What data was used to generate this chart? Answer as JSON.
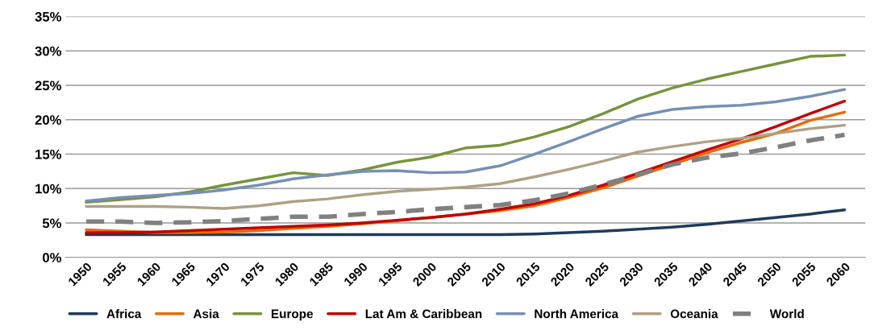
{
  "chart_data": {
    "type": "line",
    "categories": [
      "1950",
      "1955",
      "1960",
      "1965",
      "1970",
      "1975",
      "1980",
      "1985",
      "1990",
      "1995",
      "2000",
      "2005",
      "2010",
      "2015",
      "2020",
      "2025",
      "2030",
      "2035",
      "2040",
      "2045",
      "2050",
      "2055",
      "2060"
    ],
    "series": [
      {
        "name": "Africa",
        "color": "#1f3b5a",
        "values": [
          3.3,
          3.3,
          3.3,
          3.3,
          3.3,
          3.3,
          3.3,
          3.3,
          3.3,
          3.3,
          3.3,
          3.3,
          3.3,
          3.4,
          3.6,
          3.8,
          4.1,
          4.4,
          4.8,
          5.3,
          5.8,
          6.3,
          6.9
        ]
      },
      {
        "name": "Asia",
        "color": "#e36c0a",
        "values": [
          4.0,
          3.8,
          3.6,
          3.6,
          3.7,
          3.9,
          4.2,
          4.5,
          4.9,
          5.3,
          5.8,
          6.3,
          6.8,
          7.5,
          8.7,
          10.1,
          11.8,
          13.5,
          15.2,
          16.7,
          18.0,
          19.9,
          21.1
        ]
      },
      {
        "name": "Europe",
        "color": "#77933c",
        "values": [
          8.0,
          8.4,
          8.8,
          9.5,
          10.5,
          11.4,
          12.3,
          11.9,
          12.7,
          13.8,
          14.6,
          15.9,
          16.3,
          17.5,
          19.0,
          20.9,
          23.0,
          24.6,
          25.9,
          27.0,
          28.1,
          29.2,
          29.4
        ]
      },
      {
        "name": "Lat Am & Caribbean",
        "color": "#c00000",
        "values": [
          3.6,
          3.6,
          3.7,
          3.9,
          4.1,
          4.3,
          4.5,
          4.7,
          5.0,
          5.4,
          5.8,
          6.3,
          7.0,
          7.8,
          9.0,
          10.5,
          12.2,
          13.9,
          15.6,
          17.2,
          19.0,
          20.9,
          22.7
        ]
      },
      {
        "name": "North America",
        "color": "#7590b4",
        "values": [
          8.2,
          8.7,
          9.0,
          9.3,
          9.8,
          10.5,
          11.4,
          12.0,
          12.5,
          12.6,
          12.3,
          12.4,
          13.3,
          15.0,
          16.8,
          18.7,
          20.5,
          21.5,
          21.9,
          22.1,
          22.6,
          23.4,
          24.4
        ]
      },
      {
        "name": "Oceania",
        "color": "#b0a084",
        "values": [
          7.4,
          7.4,
          7.4,
          7.3,
          7.1,
          7.5,
          8.1,
          8.5,
          9.1,
          9.6,
          9.9,
          10.2,
          10.7,
          11.7,
          12.8,
          14.0,
          15.3,
          16.1,
          16.8,
          17.3,
          18.0,
          18.7,
          19.2
        ]
      },
      {
        "name": "World",
        "color": "#808080",
        "line_style": "dashed",
        "values": [
          5.2,
          5.2,
          5.0,
          5.1,
          5.3,
          5.6,
          5.9,
          5.9,
          6.3,
          6.6,
          7.0,
          7.3,
          7.6,
          8.3,
          9.3,
          10.6,
          12.0,
          13.5,
          14.5,
          15.1,
          16.0,
          17.0,
          17.8
        ]
      }
    ],
    "ylim": [
      0,
      35
    ],
    "yticks": [
      {
        "value": 0,
        "label": "0%"
      },
      {
        "value": 5,
        "label": "5%"
      },
      {
        "value": 10,
        "label": "10%"
      },
      {
        "value": 15,
        "label": "15%"
      },
      {
        "value": 20,
        "label": "20%"
      },
      {
        "value": 25,
        "label": "25%"
      },
      {
        "value": 30,
        "label": "30%"
      },
      {
        "value": 35,
        "label": "35%"
      }
    ],
    "grid": "y",
    "legend": "bottom",
    "marker": "none",
    "line_style": "solid"
  }
}
